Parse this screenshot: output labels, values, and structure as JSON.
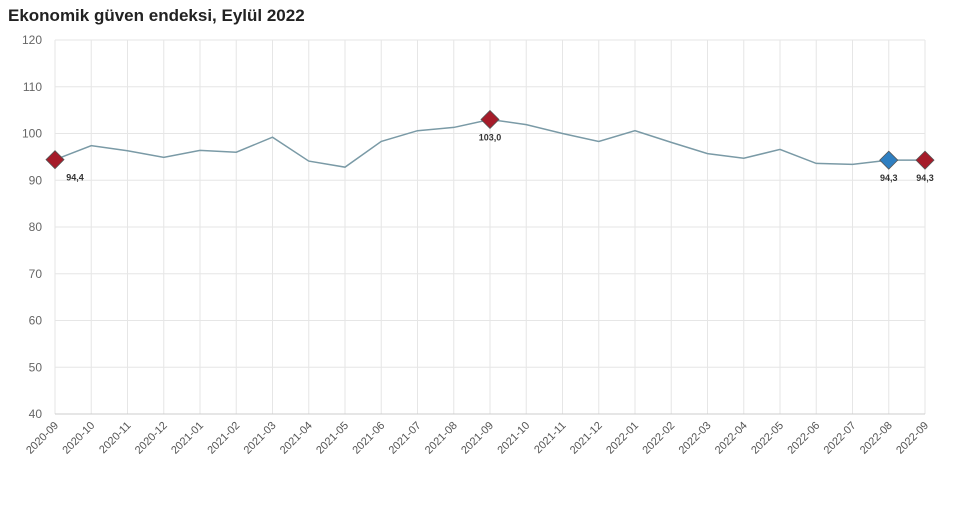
{
  "chart_data": {
    "type": "line",
    "title": "Ekonomik güven endeksi, Eylül 2022",
    "xlabel": "",
    "ylabel": "",
    "ylim": [
      40,
      120
    ],
    "yticks": [
      40,
      50,
      60,
      70,
      80,
      90,
      100,
      110,
      120
    ],
    "grid": true,
    "categories": [
      "2020-09",
      "2020-10",
      "2020-11",
      "2020-12",
      "2021-01",
      "2021-02",
      "2021-03",
      "2021-04",
      "2021-05",
      "2021-06",
      "2021-07",
      "2021-08",
      "2021-09",
      "2021-10",
      "2021-11",
      "2021-12",
      "2022-01",
      "2022-02",
      "2022-03",
      "2022-04",
      "2022-05",
      "2022-06",
      "2022-07",
      "2022-08",
      "2022-09"
    ],
    "values": [
      94.4,
      97.4,
      96.3,
      94.9,
      96.4,
      96.0,
      99.2,
      94.1,
      92.8,
      98.3,
      100.6,
      101.3,
      103.0,
      101.9,
      100.0,
      98.3,
      100.6,
      98.1,
      95.7,
      94.7,
      96.6,
      93.6,
      93.4,
      94.3,
      94.3
    ],
    "line_color": "#7a9aa6",
    "markers": [
      {
        "index": 0,
        "label": "94,4",
        "color": "#a51c2a"
      },
      {
        "index": 12,
        "label": "103,0",
        "color": "#a51c2a"
      },
      {
        "index": 23,
        "label": "94,3",
        "color": "#2f7fc1"
      },
      {
        "index": 24,
        "label": "94,3",
        "color": "#a51c2a"
      }
    ]
  }
}
